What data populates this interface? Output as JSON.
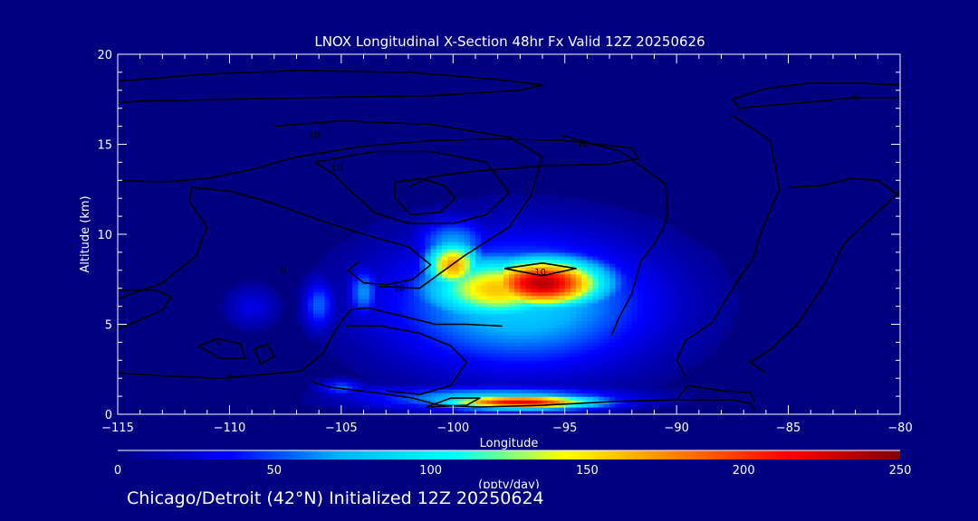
{
  "chart_data": {
    "type": "heatmap",
    "title": "LNOX Longitudinal X-Section 48hr  Fx Valid 12Z 20250626",
    "xlabel": "Longitude",
    "ylabel": "Altitude (km)",
    "xlim": [
      -115,
      -80
    ],
    "ylim": [
      0,
      20
    ],
    "x_ticks": [
      -115,
      -110,
      -105,
      -100,
      -95,
      -90,
      -85,
      -80
    ],
    "x_tick_labels": [
      "−115",
      "−110",
      "−105",
      "−100",
      "−95",
      "−90",
      "−85",
      "−80"
    ],
    "y_ticks": [
      0,
      5,
      10,
      15,
      20
    ],
    "y_tick_labels": [
      "0",
      "5",
      "10",
      "15",
      "20"
    ],
    "colorbar": {
      "label": "(pptv/day)",
      "min": 0,
      "max": 250,
      "ticks": [
        0,
        50,
        100,
        150,
        200,
        250
      ],
      "tick_labels": [
        "0",
        "50",
        "100",
        "150",
        "200",
        "250"
      ],
      "colors": [
        "#000080",
        "#0000ff",
        "#00b4ff",
        "#00ffff",
        "#ffff00",
        "#ff7f00",
        "#ff0000",
        "#800000"
      ]
    },
    "field_blobs": [
      {
        "lon": -96,
        "alt": 7.3,
        "sx": 2.0,
        "sy": 1.0,
        "v": 235
      },
      {
        "lon": -98,
        "alt": 7.0,
        "sx": 2.4,
        "sy": 1.3,
        "v": 160
      },
      {
        "lon": -100,
        "alt": 8.3,
        "sx": 0.9,
        "sy": 1.0,
        "v": 170
      },
      {
        "lon": -97,
        "alt": 6.2,
        "sx": 4.2,
        "sy": 2.6,
        "v": 85
      },
      {
        "lon": -100,
        "alt": 9.5,
        "sx": 1.2,
        "sy": 1.0,
        "v": 70
      },
      {
        "lon": -104,
        "alt": 6.8,
        "sx": 0.5,
        "sy": 1.0,
        "v": 65
      },
      {
        "lon": -106,
        "alt": 6.1,
        "sx": 0.5,
        "sy": 1.0,
        "v": 55
      },
      {
        "lon": -109,
        "alt": 6.0,
        "sx": 0.8,
        "sy": 0.8,
        "v": 28
      },
      {
        "lon": -97,
        "alt": 0.7,
        "sx": 2.5,
        "sy": 0.28,
        "v": 220
      },
      {
        "lon": -98,
        "alt": 0.9,
        "sx": 3.8,
        "sy": 0.45,
        "v": 90
      },
      {
        "lon": -105,
        "alt": 1.5,
        "sx": 0.7,
        "sy": 0.3,
        "v": 55
      },
      {
        "lon": -103,
        "alt": 1.2,
        "sx": 1.5,
        "sy": 0.3,
        "v": 40
      }
    ],
    "contour_labels": [
      {
        "text": "10",
        "lon": -106.2,
        "alt": 15.5
      },
      {
        "text": "10",
        "lon": -94.2,
        "alt": 15.0
      },
      {
        "text": "10",
        "lon": -105.2,
        "alt": 13.7
      },
      {
        "text": "10",
        "lon": -102.4,
        "alt": 7.0
      },
      {
        "text": "10",
        "lon": -96.1,
        "alt": 7.9
      },
      {
        "text": "0",
        "lon": -82.0,
        "alt": 17.6
      },
      {
        "text": "0",
        "lon": -107.6,
        "alt": 8.0
      },
      {
        "text": "0",
        "lon": -110.5,
        "alt": 4.0
      },
      {
        "text": "0",
        "lon": -110.0,
        "alt": 2.0
      }
    ],
    "contours": [
      [
        [
          -115,
          18.5
        ],
        [
          -111,
          18.9
        ],
        [
          -107,
          19.1
        ],
        [
          -102,
          19.0
        ],
        [
          -98,
          18.6
        ],
        [
          -96,
          18.3
        ],
        [
          -97,
          18.0
        ],
        [
          -101,
          17.7
        ],
        [
          -106,
          17.6
        ],
        [
          -110,
          17.5
        ],
        [
          -114,
          17.4
        ],
        [
          -115,
          17.3
        ]
      ],
      [
        [
          -115,
          13
        ],
        [
          -113,
          12.9
        ],
        [
          -111,
          13.1
        ],
        [
          -109,
          13.6
        ],
        [
          -107,
          14.3
        ],
        [
          -104,
          14.9
        ],
        [
          -101,
          15.2
        ],
        [
          -98,
          15.3
        ],
        [
          -95,
          15.2
        ],
        [
          -92,
          14.8
        ],
        [
          -91.7,
          14.2
        ],
        [
          -93,
          13.9
        ],
        [
          -96,
          13.8
        ],
        [
          -99,
          13.5
        ],
        [
          -101,
          13.2
        ],
        [
          -102,
          12.6
        ]
      ],
      [
        [
          -115,
          6.4
        ],
        [
          -113,
          7.3
        ],
        [
          -111.5,
          8.8
        ],
        [
          -111,
          10.4
        ],
        [
          -111.8,
          11.8
        ],
        [
          -111.7,
          12.6
        ],
        [
          -110,
          12.4
        ],
        [
          -108,
          11.7
        ],
        [
          -106,
          10.8
        ],
        [
          -104,
          10.0
        ],
        [
          -102,
          9.3
        ],
        [
          -101,
          8.3
        ],
        [
          -101.8,
          7.5
        ],
        [
          -103,
          7.2
        ],
        [
          -104,
          7.3
        ],
        [
          -104.7,
          8.0
        ],
        [
          -104.2,
          8.5
        ]
      ],
      [
        [
          -108,
          16.0
        ],
        [
          -105,
          16.3
        ],
        [
          -101,
          16.1
        ],
        [
          -97.5,
          15.4
        ],
        [
          -96,
          14.3
        ],
        [
          -96.5,
          12.2
        ],
        [
          -97.5,
          10.4
        ],
        [
          -99.5,
          8.8
        ],
        [
          -101.5,
          7.0
        ],
        [
          -103.3,
          7.1
        ]
      ],
      [
        [
          -106.2,
          14.0
        ],
        [
          -103.5,
          14.6
        ],
        [
          -101,
          14.6
        ],
        [
          -98.5,
          14.0
        ],
        [
          -97.5,
          12.3
        ],
        [
          -98.5,
          11.1
        ],
        [
          -100,
          10.6
        ],
        [
          -102,
          10.6
        ],
        [
          -103.5,
          11.2
        ],
        [
          -104.5,
          12.3
        ],
        [
          -105.3,
          13.3
        ],
        [
          -106.2,
          14.0
        ]
      ],
      [
        [
          -102.6,
          12.9
        ],
        [
          -101.4,
          13.1
        ],
        [
          -100.4,
          12.7
        ],
        [
          -99.9,
          12.0
        ],
        [
          -100.6,
          11.2
        ],
        [
          -101.9,
          11.1
        ],
        [
          -102.6,
          12.0
        ],
        [
          -102.6,
          12.9
        ]
      ],
      [
        [
          -97.7,
          8.1
        ],
        [
          -96,
          8.4
        ],
        [
          -94.5,
          8.1
        ],
        [
          -96,
          7.7
        ],
        [
          -97.7,
          8.1
        ]
      ],
      [
        [
          -115,
          4.7
        ],
        [
          -113,
          5.8
        ],
        [
          -112.6,
          6.5
        ],
        [
          -113.3,
          6.9
        ],
        [
          -115,
          6.9
        ]
      ],
      [
        [
          -110.4,
          3.1
        ],
        [
          -111.4,
          3.8
        ],
        [
          -110.5,
          4.2
        ],
        [
          -109.5,
          3.9
        ],
        [
          -109.3,
          3.1
        ],
        [
          -110.4,
          3.1
        ]
      ],
      [
        [
          -108.6,
          2.8
        ],
        [
          -108.9,
          3.6
        ],
        [
          -108.3,
          3.9
        ],
        [
          -108.0,
          3.2
        ],
        [
          -108.6,
          2.8
        ]
      ],
      [
        [
          -115,
          2.3
        ],
        [
          -112.5,
          2.1
        ],
        [
          -110.5,
          2.0
        ],
        [
          -108.5,
          2.2
        ],
        [
          -106.8,
          2.4
        ],
        [
          -105.8,
          3.4
        ],
        [
          -105.2,
          4.8
        ],
        [
          -104.6,
          5.8
        ],
        [
          -103.8,
          5.9
        ],
        [
          -102.4,
          5.5
        ],
        [
          -100.8,
          5.0
        ],
        [
          -99.4,
          5.0
        ],
        [
          -97.8,
          4.9
        ]
      ],
      [
        [
          -104.8,
          4.9
        ],
        [
          -103.2,
          4.9
        ],
        [
          -101.5,
          4.5
        ],
        [
          -100.1,
          3.8
        ],
        [
          -99.4,
          2.9
        ],
        [
          -100.1,
          1.6
        ],
        [
          -101.5,
          1.1
        ],
        [
          -103.0,
          1.3
        ]
      ],
      [
        [
          -86.5,
          0.2
        ],
        [
          -86.7,
          0.6
        ],
        [
          -87.5,
          0.8
        ],
        [
          -90,
          0.8
        ],
        [
          -93,
          0.7
        ],
        [
          -96,
          0.5
        ],
        [
          -98.8,
          0.4
        ],
        [
          -100.6,
          0.5
        ],
        [
          -101.8,
          0.9
        ],
        [
          -103.5,
          1.2
        ],
        [
          -105.5,
          1.5
        ],
        [
          -106.3,
          1.8
        ]
      ],
      [
        [
          -101.2,
          0.4
        ],
        [
          -100.1,
          0.9
        ],
        [
          -98.8,
          0.9
        ],
        [
          -99.4,
          0.5
        ],
        [
          -101.2,
          0.4
        ]
      ],
      [
        [
          -80,
          18.3
        ],
        [
          -82,
          18.4
        ],
        [
          -84,
          18.4
        ],
        [
          -86,
          18.1
        ],
        [
          -87.5,
          17.5
        ],
        [
          -87.2,
          17.0
        ],
        [
          -85.5,
          17.2
        ],
        [
          -83.5,
          17.4
        ],
        [
          -82.0,
          17.6
        ],
        [
          -80,
          17.6
        ]
      ],
      [
        [
          -87.5,
          16.6
        ],
        [
          -85.8,
          15.2
        ],
        [
          -85.4,
          12.5
        ],
        [
          -86.2,
          10.2
        ],
        [
          -86.6,
          8.6
        ],
        [
          -87.6,
          6.8
        ],
        [
          -88.4,
          5.1
        ],
        [
          -89.6,
          4.1
        ],
        [
          -90,
          3.0
        ],
        [
          -89.6,
          2.1
        ]
      ],
      [
        [
          -80,
          12.1
        ],
        [
          -81,
          13.0
        ],
        [
          -82.2,
          13.1
        ],
        [
          -83.5,
          12.7
        ],
        [
          -85,
          12.6
        ]
      ],
      [
        [
          -80,
          12.4
        ],
        [
          -82.5,
          9.5
        ],
        [
          -83.4,
          7.2
        ],
        [
          -84.6,
          5.0
        ],
        [
          -85.8,
          3.6
        ],
        [
          -86.7,
          2.9
        ],
        [
          -86.0,
          2.3
        ]
      ],
      [
        [
          -90,
          0.8
        ],
        [
          -89.5,
          1.6
        ],
        [
          -88,
          1.3
        ],
        [
          -86.7,
          1.2
        ],
        [
          -86.5,
          0.7
        ]
      ],
      [
        [
          -95.2,
          15.5
        ],
        [
          -92.5,
          14.6
        ],
        [
          -90.5,
          12.8
        ],
        [
          -90.4,
          11.2
        ],
        [
          -90.6,
          10.3
        ],
        [
          -91.0,
          9.5
        ],
        [
          -91.6,
          8.5
        ],
        [
          -92.0,
          6.7
        ],
        [
          -92.6,
          5.3
        ],
        [
          -92.9,
          4.4
        ]
      ]
    ]
  },
  "footer": {
    "text": "Chicago/Detroit (42°N) Initialized 12Z 20250624"
  }
}
